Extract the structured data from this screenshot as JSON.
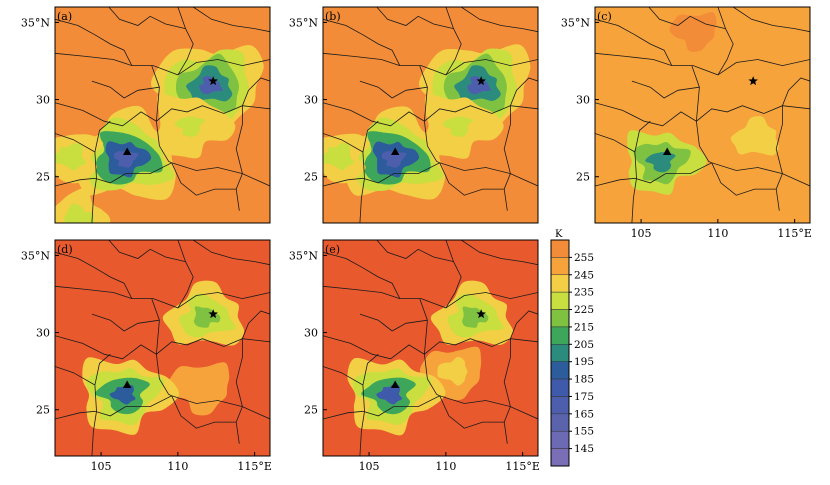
{
  "chart_data": {
    "type": "heatmap",
    "variable_unit": "K",
    "colorbar": {
      "unit_label": "K",
      "levels": [
        145,
        155,
        165,
        175,
        185,
        195,
        205,
        215,
        225,
        235,
        245,
        255
      ],
      "colors": [
        "#7a6fb6",
        "#6c6ab3",
        "#5b63ad",
        "#4d5fac",
        "#3f5aaa",
        "#2c5c9c",
        "#2b8c7e",
        "#3ea65a",
        "#7fc242",
        "#c8df3f",
        "#f2cf45",
        "#f7a33c",
        "#f28c38"
      ]
    },
    "axes": {
      "x_range": [
        102,
        116
      ],
      "y_range": [
        22,
        36
      ],
      "x_ticks": [
        {
          "value": 105,
          "label": "105"
        },
        {
          "value": 110,
          "label": "110"
        },
        {
          "value": 115,
          "label": "115°E"
        }
      ],
      "y_ticks": [
        {
          "value": 35,
          "label": "35°N"
        },
        {
          "value": 30,
          "label": "30"
        },
        {
          "value": 25,
          "label": "25"
        }
      ]
    },
    "panels": [
      {
        "id": "a",
        "label": "(a)",
        "background": "#f28c38",
        "zones": [
          {
            "lon": 112.1,
            "lat": 30.9,
            "values": [
              242,
              230,
              215,
              195,
              170
            ]
          },
          {
            "lon": 106.6,
            "lat": 26.2,
            "values": [
              240,
              228,
              212,
              190,
              168
            ]
          },
          {
            "lon": 110.8,
            "lat": 28.3,
            "values": [
              244,
              236,
              226
            ]
          },
          {
            "lon": 103.0,
            "lat": 26.3,
            "values": [
              240,
              225
            ]
          },
          {
            "lon": 103.5,
            "lat": 22.3,
            "values": [
              240,
              225
            ]
          }
        ]
      },
      {
        "id": "b",
        "label": "(b)",
        "background": "#f28c38",
        "zones": [
          {
            "lon": 112.1,
            "lat": 30.9,
            "values": [
              242,
              230,
              215,
              195,
              172
            ]
          },
          {
            "lon": 106.6,
            "lat": 26.2,
            "values": [
              240,
              228,
              212,
              190,
              170
            ]
          },
          {
            "lon": 110.8,
            "lat": 28.3,
            "values": [
              244,
              236,
              226
            ]
          },
          {
            "lon": 103.0,
            "lat": 26.3,
            "values": [
              240,
              225
            ]
          }
        ]
      },
      {
        "id": "c",
        "label": "(c)",
        "background": "#f7a33c",
        "zones": [
          {
            "lon": 108.5,
            "lat": 34.5,
            "values": [
              258
            ]
          },
          {
            "lon": 112.5,
            "lat": 27.5,
            "values": [
              238
            ]
          },
          {
            "lon": 106.3,
            "lat": 26.0,
            "values": [
              228,
              215,
              200
            ]
          }
        ]
      },
      {
        "id": "d",
        "label": "(d)",
        "background": "#e8592e",
        "zones": [
          {
            "lon": 111.5,
            "lat": 26.5,
            "values": [
              250,
              245
            ]
          },
          {
            "lon": 111.8,
            "lat": 31.0,
            "values": [
              240,
              232,
              222
            ]
          },
          {
            "lon": 106.5,
            "lat": 26.0,
            "values": [
              240,
              225,
              205,
              185
            ]
          }
        ]
      },
      {
        "id": "e",
        "label": "(e)",
        "background": "#e8592e",
        "zones": [
          {
            "lon": 110.5,
            "lat": 27.5,
            "values": [
              248,
              242
            ]
          },
          {
            "lon": 111.8,
            "lat": 31.0,
            "values": [
              240,
              228,
              215
            ]
          },
          {
            "lon": 106.4,
            "lat": 26.0,
            "values": [
              240,
              225,
              205,
              180
            ]
          }
        ]
      }
    ],
    "markers": [
      {
        "symbol": "star",
        "lon": 112.3,
        "lat": 31.2
      },
      {
        "symbol": "triangle",
        "lon": 106.7,
        "lat": 26.6
      }
    ]
  }
}
